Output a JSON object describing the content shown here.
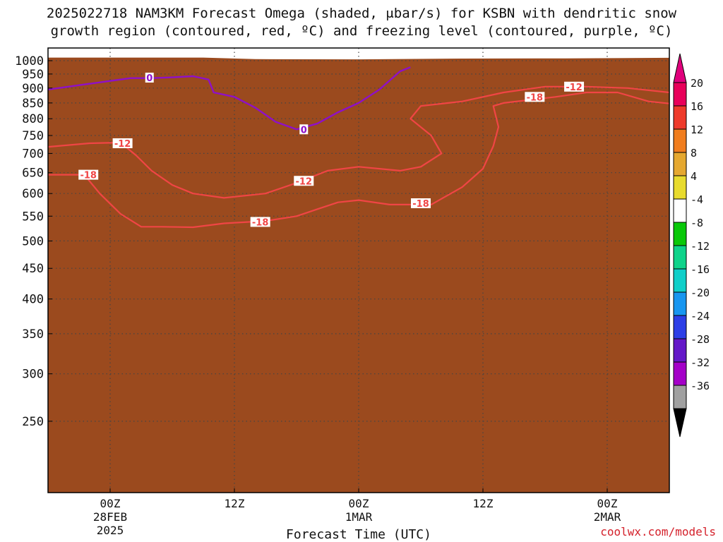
{
  "title_line1": "2025022718 NAM3KM Forecast Omega (shaded, μbar/s) for KSBN with dendritic snow",
  "title_line2": "growth region (contoured, red, ºC) and freezing level (contoured, purple, ºC)",
  "credit": "coolwx.com/models",
  "chart_data": {
    "type": "heatmap",
    "xlabel": "Forecast Time (UTC)",
    "x_range_hours": [
      0,
      60
    ],
    "x_ticks": [
      {
        "hour": 6,
        "lines": [
          "00Z",
          "28FEB",
          "2025"
        ]
      },
      {
        "hour": 18,
        "lines": [
          "12Z"
        ]
      },
      {
        "hour": 30,
        "lines": [
          "00Z",
          "1MAR"
        ]
      },
      {
        "hour": 42,
        "lines": [
          "12Z"
        ]
      },
      {
        "hour": 54,
        "lines": [
          "00Z",
          "2MAR"
        ]
      }
    ],
    "y_axis": "pressure (hPa, log scale, inverted)",
    "y_range": [
      1050,
      190
    ],
    "y_ticks": [
      250,
      300,
      350,
      400,
      450,
      500,
      550,
      600,
      650,
      700,
      750,
      800,
      850,
      900,
      950,
      1000
    ],
    "grid": "dotted",
    "colorbar": {
      "unit": "μbar/s",
      "levels": [
        {
          "label": "20",
          "color": "#e8005a"
        },
        {
          "label": "16",
          "color": "#ee3a2a"
        },
        {
          "label": "12",
          "color": "#f07d1e"
        },
        {
          "label": "8",
          "color": "#e5a830"
        },
        {
          "label": "4",
          "color": "#e8db2e"
        },
        {
          "label": "-4",
          "color": "#ffffff"
        },
        {
          "label": "-8",
          "color": "#09c809"
        },
        {
          "label": "-12",
          "color": "#0ed38a"
        },
        {
          "label": "-16",
          "color": "#10cfc9"
        },
        {
          "label": "-20",
          "color": "#1896f0"
        },
        {
          "label": "-24",
          "color": "#2c3ee6"
        },
        {
          "label": "-28",
          "color": "#6418c8"
        },
        {
          "label": "-32",
          "color": "#a400c8"
        },
        {
          "label": "-36",
          "color": "#a0a0a0"
        }
      ],
      "top_arrow_color": "#e0007c",
      "bottom_arrow_color": "#000000"
    },
    "ground_color": "#9b4a1e",
    "ground_pressure": [
      [
        0,
        1012
      ],
      [
        15,
        1012
      ],
      [
        20,
        1006
      ],
      [
        30,
        1005
      ],
      [
        40,
        1008
      ],
      [
        50,
        1009
      ],
      [
        60,
        1011
      ]
    ],
    "freezing_level": {
      "label": "0",
      "color": "#8e10c8",
      "points": [
        [
          0,
          895
        ],
        [
          3,
          910
        ],
        [
          6,
          925
        ],
        [
          8,
          935
        ],
        [
          10,
          935
        ],
        [
          12,
          938
        ],
        [
          14,
          942
        ],
        [
          15.5,
          930
        ],
        [
          16,
          885
        ],
        [
          18,
          870
        ],
        [
          20,
          835
        ],
        [
          22,
          790
        ],
        [
          24,
          768
        ],
        [
          26,
          785
        ],
        [
          28,
          820
        ],
        [
          30,
          850
        ],
        [
          32,
          895
        ],
        [
          34,
          960
        ],
        [
          35,
          975
        ]
      ]
    },
    "isotherms": [
      {
        "label": "-18",
        "color": "#f04545",
        "points": [
          [
            0,
            645
          ],
          [
            3.5,
            645
          ],
          [
            5,
            600
          ],
          [
            7,
            555
          ],
          [
            9,
            528
          ],
          [
            11,
            528
          ],
          [
            14,
            527
          ],
          [
            17,
            535
          ],
          [
            21,
            540
          ],
          [
            24,
            550
          ],
          [
            26,
            565
          ],
          [
            28,
            580
          ],
          [
            30,
            585
          ],
          [
            33,
            575
          ],
          [
            35,
            575
          ],
          [
            37,
            575
          ],
          [
            40,
            615
          ],
          [
            42,
            660
          ],
          [
            43,
            720
          ],
          [
            43.5,
            775
          ],
          [
            43,
            840
          ],
          [
            44,
            850
          ],
          [
            49,
            870
          ],
          [
            52,
            885
          ],
          [
            55,
            885
          ],
          [
            58,
            855
          ],
          [
            60,
            848
          ]
        ]
      },
      {
        "label": "-12",
        "color": "#f04545",
        "points": [
          [
            0,
            718
          ],
          [
            4,
            728
          ],
          [
            7,
            730
          ],
          [
            8.5,
            695
          ],
          [
            10,
            655
          ],
          [
            12,
            620
          ],
          [
            14,
            600
          ],
          [
            17,
            590
          ],
          [
            21,
            600
          ],
          [
            24,
            625
          ],
          [
            27,
            655
          ],
          [
            30,
            665
          ],
          [
            34,
            655
          ],
          [
            36,
            665
          ],
          [
            38,
            700
          ],
          [
            37,
            750
          ],
          [
            35,
            800
          ],
          [
            36,
            840
          ],
          [
            40,
            855
          ],
          [
            44,
            885
          ],
          [
            48,
            905
          ],
          [
            52,
            905
          ],
          [
            56,
            900
          ],
          [
            60,
            885
          ]
        ]
      }
    ],
    "omega_regions": [
      {
        "level": "4",
        "color": "#e8db2e",
        "center": [
          0.2,
          560
        ],
        "half_width_h": 0.4,
        "p_range": [
          510,
          700
        ]
      },
      {
        "level": "4",
        "color": "#e8db2e",
        "center": [
          3.4,
          860
        ],
        "half_width_h": 1.4,
        "p_range": [
          755,
          960
        ]
      },
      {
        "level": "8",
        "color": "#e5a830",
        "center": [
          3.6,
          870
        ],
        "half_width_h": 0.9,
        "p_range": [
          830,
          930
        ]
      },
      {
        "level": "12",
        "color": "#f07d1e",
        "center": [
          3.7,
          875
        ],
        "half_width_h": 0.5,
        "p_range": [
          850,
          910
        ]
      },
      {
        "level": "16",
        "color": "#ee3a2a",
        "center": [
          3.7,
          878
        ],
        "half_width_h": 0.25,
        "p_range": [
          865,
          895
        ]
      },
      {
        "level": "4",
        "color": "#e8db2e",
        "center": [
          5.3,
          600
        ],
        "half_width_h": 1.0,
        "p_range": [
          540,
          720
        ]
      },
      {
        "level": "-8",
        "color": "#09c809",
        "center": [
          1.3,
          835
        ],
        "half_width_h": 0.3,
        "p_range": [
          815,
          860
        ]
      },
      {
        "level": "-8",
        "color": "#09c809",
        "center": [
          2.1,
          490
        ],
        "half_width_h": 0.3,
        "p_range": [
          440,
          550
        ]
      },
      {
        "level": "-8",
        "color": "#09c809",
        "center": [
          6.8,
          850
        ],
        "half_width_h": 0.9,
        "p_range": [
          765,
          935
        ]
      },
      {
        "level": "-12",
        "color": "#0ed38a",
        "center": [
          6.9,
          850
        ],
        "half_width_h": 0.55,
        "p_range": [
          790,
          910
        ]
      },
      {
        "level": "-16",
        "color": "#10cfc9",
        "center": [
          7.0,
          855
        ],
        "half_width_h": 0.3,
        "p_range": [
          810,
          895
        ]
      },
      {
        "level": "-20",
        "color": "#1896f0",
        "center": [
          7.0,
          855
        ],
        "half_width_h": 0.15,
        "p_range": [
          830,
          880
        ]
      },
      {
        "level": "4",
        "color": "#e8db2e",
        "center": [
          9.2,
          890
        ],
        "half_width_h": 0.9,
        "p_range": [
          840,
          955
        ]
      },
      {
        "level": "8",
        "color": "#e5a830",
        "center": [
          9.5,
          900
        ],
        "half_width_h": 0.2,
        "p_range": [
          870,
          935
        ]
      },
      {
        "level": "-8",
        "color": "#09c809",
        "center": [
          8.2,
          445
        ],
        "half_width_h": 0.2,
        "p_range": [
          425,
          470
        ]
      },
      {
        "level": "4",
        "color": "#e8db2e",
        "center": [
          9.5,
          640
        ],
        "half_width_h": 0.3,
        "p_range": [
          580,
          720
        ]
      },
      {
        "level": "4",
        "color": "#e8db2e",
        "center": [
          12.8,
          790
        ],
        "half_width_h": 1.0,
        "p_range": [
          740,
          860
        ]
      },
      {
        "level": "4",
        "color": "#e8db2e",
        "center": [
          15.5,
          800
        ],
        "half_width_h": 1.0,
        "p_range": [
          755,
          880
        ]
      },
      {
        "level": "-8",
        "color": "#09c809",
        "center": [
          16.1,
          380
        ],
        "half_width_h": 0.5,
        "p_range": [
          355,
          415
        ]
      },
      {
        "level": "-8",
        "color": "#09c809",
        "center": [
          19.0,
          400
        ],
        "half_width_h": 0.5,
        "p_range": [
          370,
          455
        ]
      },
      {
        "level": "-8",
        "color": "#09c809",
        "center": [
          20.0,
          285
        ],
        "half_width_h": 0.5,
        "p_range": [
          240,
          330
        ]
      },
      {
        "level": "4",
        "color": "#e8db2e",
        "center": [
          23.3,
          490
        ],
        "half_width_h": 0.5,
        "p_range": [
          420,
          600
        ]
      },
      {
        "level": "-8",
        "color": "#09c809",
        "center": [
          28.2,
          630
        ],
        "half_width_h": 3.6,
        "p_range": [
          400,
          870
        ]
      },
      {
        "level": "-12",
        "color": "#0ed38a",
        "center": [
          28.2,
          625
        ],
        "half_width_h": 2.3,
        "p_range": [
          455,
          855
        ]
      },
      {
        "level": "-16",
        "color": "#10cfc9",
        "center": [
          29.5,
          700
        ],
        "half_width_h": 1.0,
        "p_range": [
          560,
          830
        ]
      },
      {
        "level": "-20",
        "color": "#1896f0",
        "center": [
          30.0,
          790
        ],
        "half_width_h": 0.4,
        "p_range": [
          745,
          830
        ]
      },
      {
        "level": "-8",
        "color": "#09c809",
        "center": [
          22.8,
          885
        ],
        "half_width_h": 0.5,
        "p_range": [
          880,
          890
        ]
      },
      {
        "level": "4",
        "color": "#e8db2e",
        "center": [
          35.8,
          510
        ],
        "half_width_h": 0.6,
        "p_range": [
          440,
          590
        ]
      },
      {
        "level": "4",
        "color": "#e8db2e",
        "center": [
          33.0,
          780
        ],
        "half_width_h": 0.7,
        "p_range": [
          740,
          840
        ]
      },
      {
        "level": "4",
        "color": "#e8db2e",
        "center": [
          35.3,
          890
        ],
        "half_width_h": 0.3,
        "p_range": [
          870,
          930
        ]
      },
      {
        "level": "4",
        "color": "#e8db2e",
        "center": [
          37.4,
          735
        ],
        "half_width_h": 0.7,
        "p_range": [
          700,
          770
        ]
      },
      {
        "level": "-8",
        "color": "#09c809",
        "center": [
          38.3,
          890
        ],
        "half_width_h": 0.3,
        "p_range": [
          845,
          940
        ]
      },
      {
        "level": "4",
        "color": "#e8db2e",
        "center": [
          46.2,
          880
        ],
        "half_width_h": 0.6,
        "p_range": [
          795,
          960
        ]
      },
      {
        "level": "8",
        "color": "#e5a830",
        "center": [
          46.2,
          880
        ],
        "half_width_h": 0.3,
        "p_range": [
          835,
          920
        ]
      },
      {
        "level": "4",
        "color": "#e8db2e",
        "center": [
          55.3,
          900
        ],
        "half_width_h": 1.0,
        "p_range": [
          875,
          935
        ]
      },
      {
        "level": "4",
        "color": "#e8db2e",
        "center": [
          57.6,
          860
        ],
        "half_width_h": 0.6,
        "p_range": [
          840,
          880
        ]
      }
    ],
    "contour_labels": [
      {
        "text": "-18",
        "x": 3.9,
        "p": 645,
        "color": "#f04545"
      },
      {
        "text": "-12",
        "x": 7.2,
        "p": 728,
        "color": "#f04545"
      },
      {
        "text": "-18",
        "x": 20.5,
        "p": 538,
        "color": "#f04545"
      },
      {
        "text": "-12",
        "x": 24.7,
        "p": 630,
        "color": "#f04545"
      },
      {
        "text": "-18",
        "x": 36.0,
        "p": 578,
        "color": "#f04545"
      },
      {
        "text": "-18",
        "x": 47.0,
        "p": 870,
        "color": "#f04545"
      },
      {
        "text": "-12",
        "x": 50.8,
        "p": 905,
        "color": "#f04545"
      },
      {
        "text": "0",
        "x": 9.8,
        "p": 937,
        "color": "#8e10c8"
      },
      {
        "text": "0",
        "x": 24.7,
        "p": 768,
        "color": "#8e10c8"
      }
    ]
  }
}
